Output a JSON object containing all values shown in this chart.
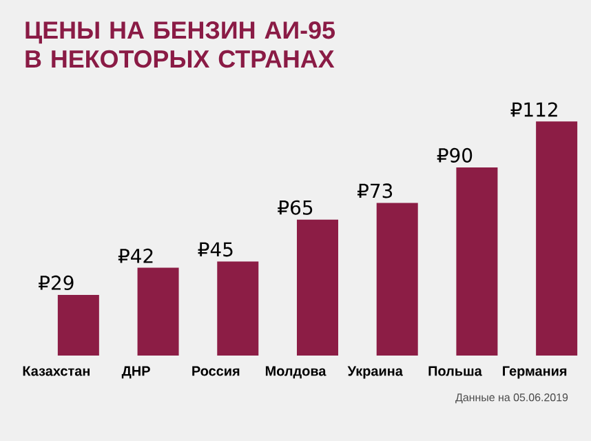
{
  "chart_data": {
    "type": "bar",
    "title": "ЦЕНЫ НА БЕНЗИН АИ-95 В НЕКОТОРЫХ СТРАНАХ",
    "categories": [
      "Казахстан",
      "ДНР",
      "Россия",
      "Молдова",
      "Украина",
      "Польша",
      "Германия"
    ],
    "values": [
      29,
      42,
      45,
      65,
      73,
      90,
      112
    ],
    "value_labels": [
      "₽29",
      "₽42",
      "₽45",
      "₽65",
      "₽73",
      "₽90",
      "₽112"
    ],
    "color": "#8c1d45",
    "annotations": [
      "Данные на 05.06.2019"
    ]
  }
}
